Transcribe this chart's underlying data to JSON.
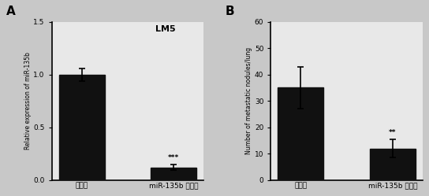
{
  "panel_A": {
    "label": "A",
    "title": "LM5",
    "categories": [
      "对照组",
      "miR-135b 抑制剂"
    ],
    "values": [
      1.0,
      0.12
    ],
    "errors": [
      0.06,
      0.025
    ],
    "ylabel": "Relative expression of miR-135b",
    "ylim": [
      0,
      1.5
    ],
    "yticks": [
      0.0,
      0.5,
      1.0,
      1.5
    ],
    "significance": [
      "",
      "***"
    ],
    "bar_color": "#111111"
  },
  "panel_B": {
    "label": "B",
    "categories": [
      "对照组",
      "miR-135b 抑制剂"
    ],
    "values": [
      35,
      12
    ],
    "errors": [
      8,
      3.5
    ],
    "ylabel": "Number of metastatic nodules/lung",
    "ylim": [
      0,
      60
    ],
    "yticks": [
      0,
      10,
      20,
      30,
      40,
      50,
      60
    ],
    "significance": [
      "",
      "**"
    ],
    "bar_color": "#111111"
  },
  "background_color": "#c8c8c8",
  "plot_bg_color": "#e8e8e8",
  "bar_width": 0.5
}
